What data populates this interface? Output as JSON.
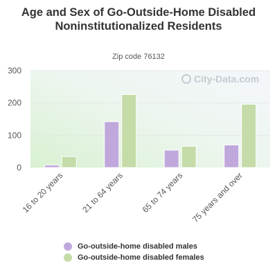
{
  "title": "Age and Sex of Go-Outside-Home Disabled Noninstitutionalized Residents",
  "subtitle": "Zip code 76132",
  "watermark": "City-Data.com",
  "colors": {
    "males": "#c0a8dc",
    "females": "#c5dba8",
    "axis_text": "#555555"
  },
  "chart_data": {
    "type": "bar",
    "title": "Age and Sex of Go-Outside-Home Disabled Noninstitutionalized Residents",
    "subtitle": "Zip code 76132",
    "categories": [
      "16 to 20 years",
      "21 to 64 years",
      "65 to 74 years",
      "75 years and over"
    ],
    "series": [
      {
        "name": "Go-outside-home disabled males",
        "values": [
          8,
          142,
          54,
          70
        ]
      },
      {
        "name": "Go-outside-home disabled females",
        "values": [
          34,
          226,
          66,
          196
        ]
      }
    ],
    "ylim": [
      0,
      300
    ],
    "yticks": [
      0,
      100,
      200,
      300
    ],
    "grid": true,
    "legend_position": "bottom"
  }
}
